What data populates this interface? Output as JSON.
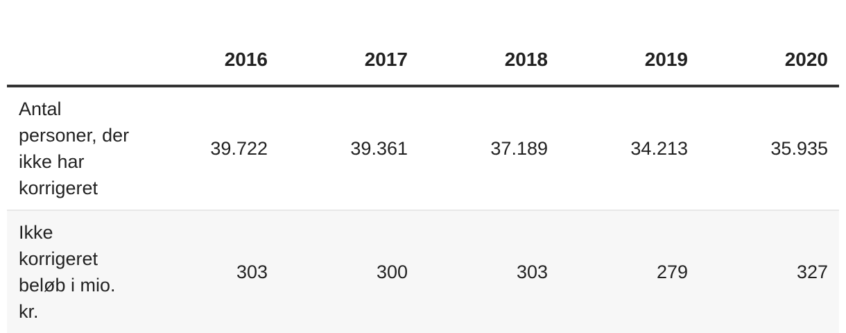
{
  "table": {
    "columns": [
      "2016",
      "2017",
      "2018",
      "2019",
      "2020"
    ],
    "rows": [
      {
        "label": "Antal personer, der ikke har korrigeret",
        "cells": [
          "39.722",
          "39.361",
          "37.189",
          "34.213",
          "35.935"
        ]
      },
      {
        "label": "Ikke korrigeret beløb i mio. kr.",
        "cells": [
          "303",
          "300",
          "303",
          "279",
          "327"
        ]
      }
    ]
  }
}
